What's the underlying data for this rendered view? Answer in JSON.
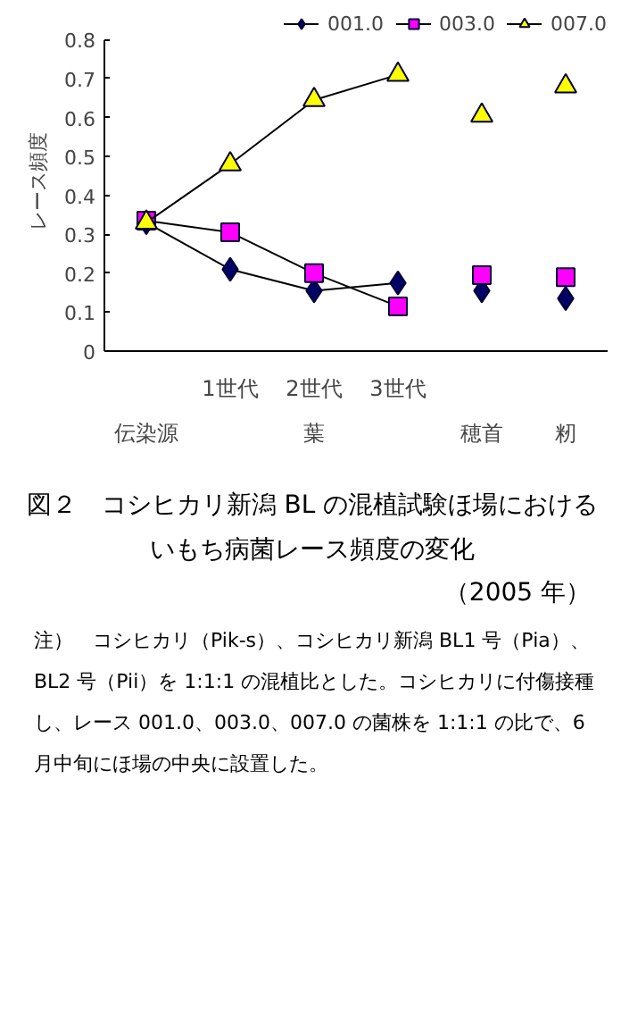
{
  "chart_data": {
    "type": "line",
    "title": "図２　コシヒカリ新潟 BL の混植試験ほ場におけるいもち病菌レース頻度の変化",
    "subtitle": "（2005 年）",
    "ylabel": "レース頻度",
    "categories": [
      "伝染源",
      "1世代",
      "2世代",
      "3世代",
      "穂首",
      "籾"
    ],
    "series": [
      {
        "name": "001.0",
        "color": "#000066",
        "marker": "diamond",
        "values": [
          0.33,
          0.21,
          0.155,
          0.175,
          null,
          null
        ]
      },
      {
        "name": "003.0",
        "color": "#ff00ff",
        "marker": "square",
        "values": [
          0.335,
          0.305,
          0.2,
          0.115,
          null,
          null
        ]
      },
      {
        "name": "007.0",
        "color": "#ffff00",
        "marker": "triangle",
        "values": [
          0.33,
          0.48,
          0.645,
          0.71,
          null,
          null
        ]
      },
      {
        "type": "scatter",
        "color": "#000066",
        "marker": "diamond",
        "values": [
          null,
          null,
          null,
          null,
          0.155,
          0.135
        ]
      },
      {
        "type": "scatter",
        "color": "#ff00ff",
        "marker": "square",
        "values": [
          null,
          null,
          null,
          null,
          0.195,
          0.19
        ]
      },
      {
        "type": "scatter",
        "color": "#ffff00",
        "marker": "triangle",
        "values": [
          null,
          null,
          null,
          null,
          0.605,
          0.68
        ]
      }
    ],
    "ylim": [
      0,
      0.8
    ],
    "yticks": [
      0,
      0.1,
      0.2,
      0.3,
      0.4,
      0.5,
      0.6,
      0.7,
      0.8
    ],
    "grid": false,
    "legend": "top",
    "annotations": [
      "葉",
      "注）　コシヒカリ（Pik-s）、コシヒカリ新潟 BL1 号（Pia）、BL2 号（Pii）を 1:1:1 の混植比とした。コシヒカリに付傷接種し、レース 001.0、003.0、007.0 の菌株を 1:1:1 の比で、6 月中旬にほ場の中央に設置した。"
    ]
  }
}
